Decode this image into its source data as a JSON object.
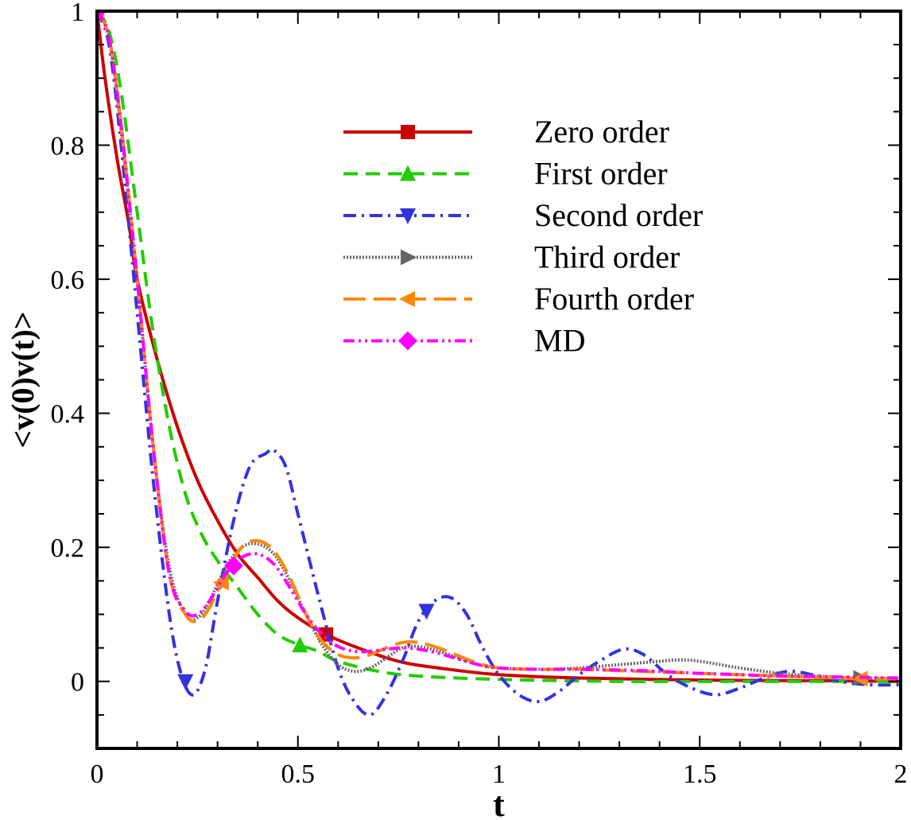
{
  "chart_data": {
    "type": "line",
    "xlabel": "t",
    "ylabel": "<v(0)v(t)>",
    "xlim": [
      0,
      2
    ],
    "ylim": [
      -0.1,
      1
    ],
    "xticks": [
      0,
      0.5,
      1,
      1.5,
      2
    ],
    "xtick_labels": [
      "0",
      "0.5",
      "1",
      "1.5",
      "2"
    ],
    "yticks": [
      0,
      0.2,
      0.4,
      0.6,
      0.8,
      1
    ],
    "ytick_labels": [
      "0",
      "0.2",
      "0.4",
      "0.6",
      "0.8",
      "1"
    ],
    "grid": false,
    "legend": "top-center",
    "series": [
      {
        "name": "Zero order",
        "color": "#cc0000",
        "dash": "solid",
        "marker": "square",
        "x": [
          0,
          0.02,
          0.05,
          0.08,
          0.1,
          0.15,
          0.2,
          0.25,
          0.3,
          0.35,
          0.4,
          0.45,
          0.5,
          0.57,
          0.65,
          0.75,
          0.85,
          1.0,
          1.2,
          1.5,
          1.8,
          2.0
        ],
        "y": [
          1.0,
          0.9,
          0.78,
          0.68,
          0.6,
          0.48,
          0.38,
          0.3,
          0.24,
          0.19,
          0.155,
          0.12,
          0.095,
          0.07,
          0.05,
          0.03,
          0.02,
          0.01,
          0.005,
          0.002,
          0.001,
          0.0
        ],
        "marker_x": [
          0.0,
          0.57
        ]
      },
      {
        "name": "First order",
        "color": "#22cc00",
        "dash": "dashed",
        "marker": "triangle-up",
        "x": [
          0,
          0.03,
          0.06,
          0.1,
          0.14,
          0.18,
          0.22,
          0.26,
          0.3,
          0.35,
          0.4,
          0.45,
          0.5,
          0.55,
          0.6,
          0.7,
          0.8,
          1.0,
          1.3,
          1.6,
          2.0
        ],
        "y": [
          1.0,
          0.97,
          0.88,
          0.7,
          0.52,
          0.38,
          0.28,
          0.22,
          0.18,
          0.14,
          0.1,
          0.07,
          0.055,
          0.045,
          0.03,
          0.015,
          0.008,
          0.003,
          0.0,
          0.0,
          0.0
        ],
        "marker_x": [
          0.0,
          0.505
        ]
      },
      {
        "name": "Second order",
        "color": "#3333dd",
        "dash": "dashdot",
        "marker": "triangle-down",
        "x": [
          0,
          0.03,
          0.06,
          0.1,
          0.14,
          0.18,
          0.21,
          0.24,
          0.27,
          0.3,
          0.34,
          0.38,
          0.42,
          0.44,
          0.47,
          0.5,
          0.55,
          0.6,
          0.64,
          0.68,
          0.72,
          0.76,
          0.8,
          0.84,
          0.88,
          0.92,
          0.96,
          1.0,
          1.05,
          1.1,
          1.15,
          1.2,
          1.25,
          1.31,
          1.36,
          1.42,
          1.48,
          1.54,
          1.6,
          1.66,
          1.72,
          1.78,
          1.85,
          1.92,
          2.0
        ],
        "y": [
          1.0,
          0.95,
          0.8,
          0.55,
          0.3,
          0.1,
          0.01,
          -0.02,
          0.02,
          0.12,
          0.24,
          0.32,
          0.34,
          0.345,
          0.32,
          0.25,
          0.13,
          0.02,
          -0.03,
          -0.05,
          -0.02,
          0.03,
          0.09,
          0.12,
          0.125,
          0.1,
          0.05,
          0.01,
          -0.02,
          -0.03,
          -0.015,
          0.01,
          0.03,
          0.048,
          0.04,
          0.01,
          -0.01,
          -0.02,
          -0.01,
          0.005,
          0.015,
          0.01,
          0.0,
          -0.005,
          -0.005
        ],
        "marker_x": [
          0.22,
          0.82
        ]
      },
      {
        "name": "Third order",
        "color": "#666666",
        "dash": "dotted",
        "marker": "triangle-right",
        "x": [
          0,
          0.03,
          0.06,
          0.1,
          0.14,
          0.18,
          0.22,
          0.25,
          0.28,
          0.32,
          0.36,
          0.4,
          0.44,
          0.48,
          0.52,
          0.56,
          0.6,
          0.64,
          0.68,
          0.72,
          0.76,
          0.8,
          0.85,
          0.9,
          0.95,
          1.0,
          1.1,
          1.2,
          1.3,
          1.4,
          1.45,
          1.5,
          1.6,
          1.7,
          1.8,
          1.9,
          2.0
        ],
        "y": [
          1.0,
          0.96,
          0.82,
          0.6,
          0.35,
          0.17,
          0.1,
          0.095,
          0.12,
          0.17,
          0.2,
          0.205,
          0.19,
          0.15,
          0.1,
          0.055,
          0.025,
          0.015,
          0.02,
          0.035,
          0.05,
          0.052,
          0.045,
          0.035,
          0.025,
          0.02,
          0.018,
          0.02,
          0.025,
          0.03,
          0.032,
          0.03,
          0.02,
          0.012,
          0.008,
          0.005,
          0.005
        ],
        "marker_x": [
          0.0,
          1.9
        ]
      },
      {
        "name": "Fourth order",
        "color": "#ff8800",
        "dash": "longdash",
        "marker": "triangle-left",
        "x": [
          0,
          0.03,
          0.06,
          0.1,
          0.14,
          0.18,
          0.22,
          0.25,
          0.28,
          0.32,
          0.36,
          0.4,
          0.44,
          0.48,
          0.52,
          0.56,
          0.6,
          0.64,
          0.68,
          0.72,
          0.76,
          0.8,
          0.85,
          0.9,
          0.95,
          1.0,
          1.1,
          1.2,
          1.3,
          1.4,
          1.5,
          1.6,
          1.7,
          1.8,
          1.9,
          2.0
        ],
        "y": [
          1.0,
          0.96,
          0.83,
          0.6,
          0.35,
          0.16,
          0.1,
          0.09,
          0.11,
          0.16,
          0.2,
          0.21,
          0.195,
          0.155,
          0.1,
          0.06,
          0.04,
          0.035,
          0.04,
          0.05,
          0.058,
          0.058,
          0.05,
          0.038,
          0.027,
          0.02,
          0.018,
          0.018,
          0.016,
          0.014,
          0.012,
          0.01,
          0.008,
          0.006,
          0.004,
          0.004
        ],
        "marker_x": [
          0.0,
          0.31,
          1.9
        ]
      },
      {
        "name": "MD",
        "color": "#ff00ff",
        "dash": "dashdotdot",
        "marker": "diamond",
        "x": [
          0,
          0.03,
          0.06,
          0.1,
          0.14,
          0.18,
          0.22,
          0.25,
          0.28,
          0.32,
          0.36,
          0.4,
          0.44,
          0.48,
          0.52,
          0.56,
          0.6,
          0.64,
          0.68,
          0.72,
          0.76,
          0.8,
          0.85,
          0.9,
          0.95,
          1.0,
          1.1,
          1.2,
          1.3,
          1.4,
          1.5,
          1.6,
          1.7,
          1.8,
          1.9,
          2.0
        ],
        "y": [
          1.0,
          0.96,
          0.83,
          0.6,
          0.35,
          0.16,
          0.105,
          0.1,
          0.12,
          0.16,
          0.185,
          0.19,
          0.175,
          0.14,
          0.1,
          0.07,
          0.052,
          0.045,
          0.045,
          0.048,
          0.05,
          0.048,
          0.042,
          0.033,
          0.025,
          0.02,
          0.018,
          0.018,
          0.017,
          0.015,
          0.012,
          0.01,
          0.008,
          0.007,
          0.006,
          0.005
        ],
        "marker_x": [
          0.0,
          0.34
        ]
      }
    ]
  }
}
